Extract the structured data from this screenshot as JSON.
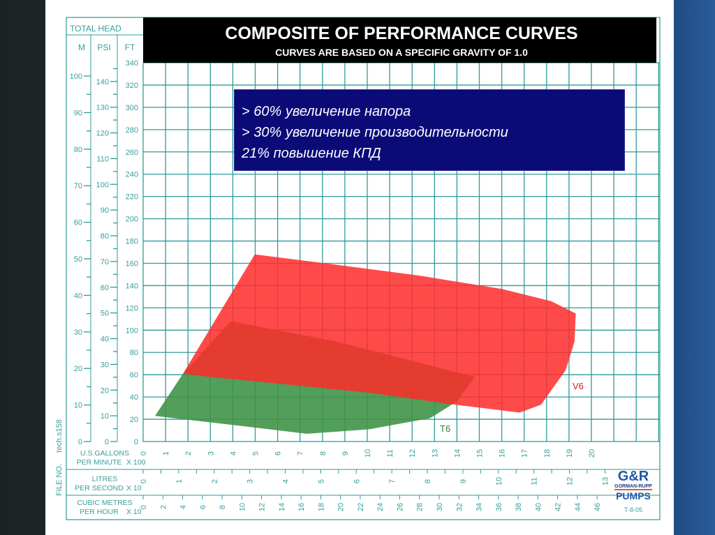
{
  "chart_data": {
    "type": "area",
    "title": "COMPOSITE OF PERFORMANCE CURVES",
    "subtitle": "CURVES ARE BASED ON A SPECIFIC GRAVITY OF 1.0",
    "ylabel": "TOTAL HEAD",
    "y_axes": {
      "m": {
        "label": "M",
        "ticks": [
          0,
          10,
          20,
          30,
          40,
          50,
          60,
          70,
          80,
          90,
          100
        ]
      },
      "psi": {
        "label": "PSI",
        "ticks": [
          0,
          10,
          20,
          30,
          40,
          50,
          60,
          70,
          80,
          90,
          100,
          110,
          120,
          130,
          140
        ]
      },
      "ft": {
        "label": "FT",
        "ticks": [
          0,
          20,
          40,
          60,
          80,
          100,
          120,
          140,
          160,
          180,
          200,
          220,
          240,
          260,
          280,
          300,
          320,
          340
        ]
      }
    },
    "ylim_ft": [
      0,
      340
    ],
    "x_axes": {
      "gpm": {
        "label_line1": "U.S.GALLONS",
        "label_line2": "PER MINUTE",
        "multiplier": "X 100",
        "ticks": [
          0,
          1,
          2,
          3,
          4,
          5,
          6,
          7,
          8,
          9,
          10,
          11,
          12,
          13,
          14,
          15,
          16,
          17,
          18,
          19,
          20
        ]
      },
      "lps": {
        "label_line1": "LITRES",
        "label_line2": "PER SECOND",
        "multiplier": "X 10",
        "ticks": [
          0,
          1,
          2,
          3,
          4,
          5,
          6,
          7,
          8,
          9,
          10,
          11,
          12,
          13
        ]
      },
      "m3h": {
        "label_line1": "CUBIC METRES",
        "label_line2": "PER HOUR",
        "multiplier": "X 10",
        "ticks": [
          0,
          2,
          4,
          6,
          8,
          10,
          12,
          14,
          16,
          18,
          20,
          22,
          24,
          26,
          28,
          30,
          32,
          34,
          36,
          38,
          40,
          42,
          44,
          46
        ]
      }
    },
    "xlim_gpm_x100": [
      0,
      23
    ],
    "grid": true,
    "series": [
      {
        "name": "T6",
        "color": "#3f9448",
        "polygon_gpm_x100_ft": [
          [
            0.53,
            23
          ],
          [
            1.78,
            61
          ],
          [
            3.9,
            108
          ],
          [
            8.57,
            90
          ],
          [
            12.3,
            71
          ],
          [
            14.8,
            58
          ],
          [
            14.0,
            36
          ],
          [
            12.8,
            21
          ],
          [
            10.1,
            11
          ],
          [
            7.3,
            7
          ],
          [
            4.8,
            13
          ]
        ]
      },
      {
        "name": "V6",
        "color": "#ff2a2a",
        "polygon_gpm_x100_ft": [
          [
            1.78,
            61
          ],
          [
            4.98,
            168
          ],
          [
            8.88,
            158
          ],
          [
            12.3,
            149
          ],
          [
            16.0,
            137
          ],
          [
            18.2,
            126
          ],
          [
            19.3,
            115
          ],
          [
            19.25,
            90
          ],
          [
            18.85,
            64
          ],
          [
            17.75,
            33
          ],
          [
            16.8,
            26
          ],
          [
            13.55,
            34
          ],
          [
            10.4,
            43
          ],
          [
            6.07,
            52
          ],
          [
            2.96,
            58
          ]
        ]
      }
    ],
    "annotations": {
      "total_head": "TOTAL HEAD",
      "file_no": "FILE NO.",
      "file_id": "tech.s158",
      "doc_code": "T-8-05"
    }
  },
  "logo": {
    "mark": "G&R",
    "name": "GORMAN-RUPP",
    "sub": "PUMPS"
  },
  "info_box": {
    "lines": [
      "> 60% увеличение напора",
      "> 30% увеличение производительности",
      "21% повышение КПД"
    ]
  },
  "colors": {
    "grid": "#2f9a9a",
    "header": "#000000",
    "info_bg": "#0b0b78",
    "axis_text": "#3a9c9c"
  }
}
